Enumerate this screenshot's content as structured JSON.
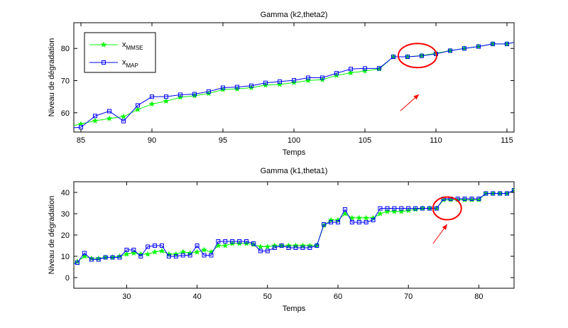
{
  "chart_data": [
    {
      "type": "line",
      "title": "Gamma (k2,theta2)",
      "xlabel": "Temps",
      "ylabel": "Niveau de dégradation",
      "xlim": [
        84.5,
        115.5
      ],
      "ylim": [
        54,
        88
      ],
      "xticks": [
        85,
        90,
        95,
        100,
        105,
        110,
        115
      ],
      "yticks": [
        60,
        70,
        80
      ],
      "grid": false,
      "legend": {
        "location": "top-left",
        "entries": [
          {
            "base": "x",
            "sub": "MMSE"
          },
          {
            "base": "x",
            "sub": "MAP"
          }
        ]
      },
      "x": [
        84,
        85,
        86,
        87,
        88,
        89,
        90,
        91,
        92,
        93,
        94,
        95,
        96,
        97,
        98,
        99,
        100,
        101,
        102,
        103,
        104,
        105,
        106,
        107,
        108,
        109,
        110,
        111,
        112,
        113,
        114,
        115,
        116
      ],
      "series": [
        {
          "name": "x_MMSE",
          "color": "#00ff00",
          "marker": "star",
          "values": [
            55.6,
            56.5,
            57.5,
            58.2,
            58.8,
            61,
            62.7,
            63.6,
            64.8,
            65.3,
            66,
            67.2,
            67.4,
            67.8,
            68.6,
            68.8,
            69.4,
            70,
            70.3,
            71.6,
            72.4,
            73,
            73.6,
            77.4,
            77.4,
            77.8,
            78.5,
            79.3,
            80,
            80.6,
            81.4,
            81.4,
            82.4
          ]
        },
        {
          "name": "x_MAP",
          "color": "#0000ff",
          "marker": "square",
          "values": [
            55.2,
            55.5,
            59,
            60.5,
            57.4,
            62.3,
            65,
            65,
            65.6,
            65.8,
            66.6,
            67.8,
            68,
            68.4,
            69.3,
            69.7,
            70.1,
            70.9,
            70.9,
            72.3,
            73.6,
            73.8,
            73.8,
            77.4,
            77.4,
            77.7,
            78.3,
            79.3,
            80,
            80.6,
            81.4,
            81.4,
            82.4
          ]
        }
      ],
      "annotations": [
        {
          "type": "ellipse",
          "center": [
            108.7,
            77.8
          ],
          "color": "#ff0000"
        },
        {
          "type": "arrow",
          "from": [
            107.5,
            60.6
          ],
          "to": [
            108.8,
            65.7
          ],
          "color": "#ff0000"
        }
      ]
    },
    {
      "type": "line",
      "title": "Gamma (k1,theta1)",
      "xlabel": "Temps",
      "ylabel": "Niveau de dégradation",
      "xlim": [
        22.5,
        85
      ],
      "ylim": [
        -5,
        45
      ],
      "xticks": [
        30,
        40,
        50,
        60,
        70,
        80
      ],
      "yticks": [
        0,
        10,
        20,
        30,
        40
      ],
      "grid": false,
      "x": [
        22,
        23,
        24,
        25,
        26,
        27,
        28,
        29,
        30,
        31,
        32,
        33,
        34,
        35,
        36,
        37,
        38,
        39,
        40,
        41,
        42,
        43,
        44,
        45,
        46,
        47,
        48,
        49,
        50,
        51,
        52,
        53,
        54,
        55,
        56,
        57,
        58,
        59,
        60,
        61,
        62,
        63,
        64,
        65,
        66,
        67,
        68,
        69,
        70,
        71,
        72,
        73,
        74,
        75,
        76,
        77,
        78,
        79,
        80,
        81,
        82,
        83,
        84,
        85
      ],
      "series": [
        {
          "name": "x_MMSE",
          "color": "#00ff00",
          "marker": "star",
          "values": [
            6,
            7.5,
            10,
            9,
            9,
            9.5,
            9.5,
            10,
            11,
            11.5,
            11,
            11,
            12,
            12.5,
            11,
            11,
            12,
            11.5,
            12,
            13,
            12,
            15,
            15,
            16,
            16,
            16,
            15.5,
            14.5,
            14.5,
            15,
            15,
            15,
            15,
            15,
            15,
            15,
            24.5,
            27,
            27,
            30,
            28,
            28,
            28,
            28,
            30,
            31,
            31,
            31,
            31.5,
            32,
            32.5,
            32.5,
            32.5,
            36.5,
            36.5,
            36.5,
            36.5,
            36.5,
            36.5,
            39.5,
            39.5,
            39.5,
            39.5,
            41
          ]
        },
        {
          "name": "x_MAP",
          "color": "#0000ff",
          "marker": "square",
          "values": [
            6,
            7,
            11.5,
            8.5,
            8.5,
            9.5,
            9.5,
            9.5,
            13,
            13,
            10,
            14.5,
            15,
            15,
            10,
            10,
            10.5,
            10.5,
            15,
            10.5,
            10.5,
            17,
            17,
            17,
            17,
            17,
            16,
            12.5,
            12.5,
            14,
            15,
            14,
            14,
            14,
            14,
            15,
            25,
            26,
            26,
            32,
            26,
            26,
            26,
            27,
            32.5,
            32.5,
            32.5,
            32.5,
            32.5,
            32.5,
            32.5,
            32.5,
            32.5,
            37,
            37,
            37,
            37,
            37,
            37,
            39.5,
            39.5,
            39.5,
            39.5,
            41
          ]
        }
      ],
      "annotations": [
        {
          "type": "ellipse",
          "center": [
            75.5,
            32.5
          ],
          "color": "#ff0000"
        },
        {
          "type": "arrow",
          "from": [
            73.5,
            16
          ],
          "to": [
            75.5,
            25
          ],
          "color": "#ff0000"
        }
      ]
    }
  ]
}
